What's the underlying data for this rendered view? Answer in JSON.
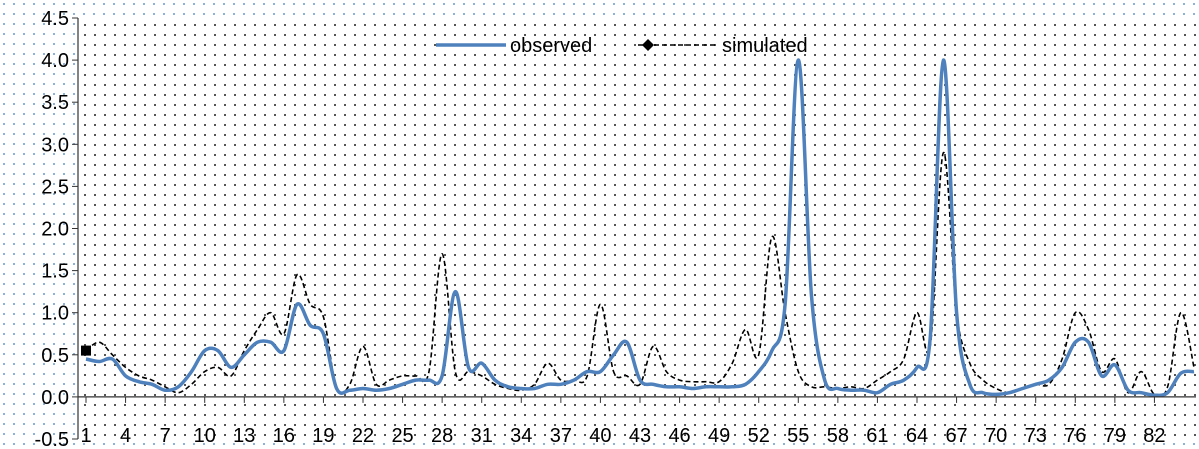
{
  "chart_data": {
    "type": "line",
    "title": "",
    "xlabel": "",
    "ylabel": "",
    "x": [
      1,
      2,
      3,
      4,
      5,
      6,
      7,
      8,
      9,
      10,
      11,
      12,
      13,
      14,
      15,
      16,
      17,
      18,
      19,
      20,
      21,
      22,
      23,
      24,
      25,
      26,
      27,
      28,
      29,
      30,
      31,
      32,
      33,
      34,
      35,
      36,
      37,
      38,
      39,
      40,
      41,
      42,
      43,
      44,
      45,
      46,
      47,
      48,
      49,
      50,
      51,
      52,
      53,
      54,
      55,
      56,
      57,
      58,
      59,
      60,
      61,
      62,
      63,
      64,
      65,
      66,
      67,
      68,
      69,
      70,
      71,
      72,
      73,
      74,
      75,
      76,
      77,
      78,
      79,
      80,
      81,
      82,
      83,
      84,
      85
    ],
    "xticks": [
      1,
      4,
      7,
      10,
      13,
      16,
      19,
      22,
      25,
      28,
      31,
      34,
      37,
      40,
      43,
      46,
      49,
      52,
      55,
      58,
      61,
      64,
      67,
      70,
      73,
      76,
      79,
      82
    ],
    "xtick_labels": [
      "1",
      "4",
      "7",
      "10",
      "13",
      "16",
      "19",
      "22",
      "25",
      "28",
      "31",
      "34",
      "37",
      "40",
      "43",
      "46",
      "49",
      "52",
      "55",
      "58",
      "61",
      "64",
      "67",
      "70",
      "73",
      "76",
      "79",
      "82"
    ],
    "ylim": [
      -0.5,
      4.5
    ],
    "yticks": [
      -0.5,
      0.0,
      0.5,
      1.0,
      1.5,
      2.0,
      2.5,
      3.0,
      3.5,
      4.0,
      4.5
    ],
    "ytick_labels": [
      "-0.5",
      "0.0",
      "0.5",
      "1.0",
      "1.5",
      "2.0",
      "2.5",
      "3.0",
      "3.5",
      "4.0",
      "4.5"
    ],
    "grid": "dotted",
    "legend": "top-center",
    "series": [
      {
        "name": "observed",
        "color": "#4F81BD",
        "values": [
          0.45,
          0.42,
          0.45,
          0.25,
          0.18,
          0.15,
          0.08,
          0.12,
          0.3,
          0.55,
          0.55,
          0.35,
          0.5,
          0.65,
          0.65,
          0.55,
          1.1,
          0.85,
          0.75,
          0.1,
          0.08,
          0.1,
          0.08,
          0.1,
          0.15,
          0.2,
          0.2,
          0.25,
          1.25,
          0.35,
          0.4,
          0.2,
          0.12,
          0.1,
          0.1,
          0.15,
          0.15,
          0.2,
          0.3,
          0.3,
          0.5,
          0.65,
          0.2,
          0.15,
          0.12,
          0.12,
          0.1,
          0.12,
          0.12,
          0.12,
          0.15,
          0.3,
          0.55,
          1.1,
          4.0,
          1.2,
          0.2,
          0.1,
          0.08,
          0.08,
          0.05,
          0.15,
          0.2,
          0.35,
          0.7,
          4.0,
          1.0,
          0.15,
          0.05,
          0.03,
          0.05,
          0.1,
          0.15,
          0.2,
          0.35,
          0.65,
          0.65,
          0.25,
          0.38,
          0.08,
          0.05,
          0.02,
          0.05,
          0.28,
          0.3
        ]
      },
      {
        "name": "simulated",
        "color": "#000000",
        "values": [
          0.55,
          0.65,
          0.5,
          0.35,
          0.25,
          0.2,
          0.12,
          0.05,
          0.15,
          0.3,
          0.35,
          0.25,
          0.55,
          0.8,
          1.0,
          0.75,
          1.45,
          1.1,
          0.95,
          0.1,
          0.15,
          0.6,
          0.15,
          0.2,
          0.25,
          0.25,
          0.3,
          1.7,
          0.3,
          0.3,
          0.25,
          0.15,
          0.1,
          0.08,
          0.15,
          0.4,
          0.2,
          0.2,
          0.25,
          1.1,
          0.3,
          0.25,
          0.15,
          0.6,
          0.3,
          0.2,
          0.18,
          0.18,
          0.18,
          0.4,
          0.8,
          0.5,
          1.9,
          1.0,
          0.3,
          0.12,
          0.12,
          0.1,
          0.12,
          0.1,
          0.2,
          0.3,
          0.45,
          1.0,
          0.6,
          2.9,
          1.0,
          0.4,
          0.2,
          0.1,
          0.05,
          0.1,
          0.15,
          0.15,
          0.45,
          1.0,
          0.8,
          0.3,
          0.45,
          0.05,
          0.3,
          0.03,
          0.12,
          1.0,
          0.35
        ]
      }
    ]
  }
}
